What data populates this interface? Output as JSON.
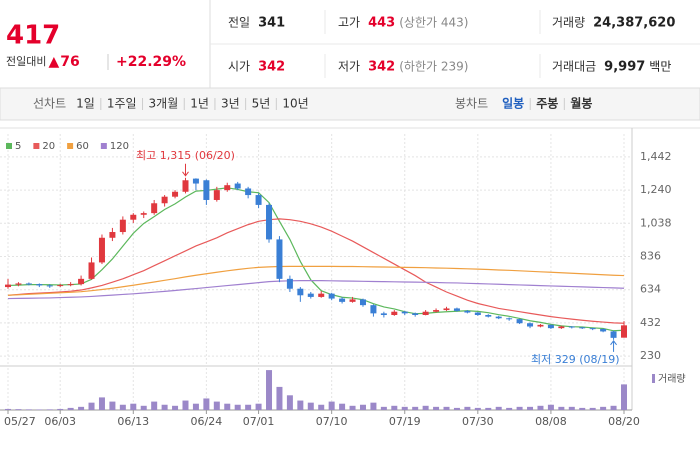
{
  "header": {
    "price": 417,
    "change_label": "전일대비",
    "arrow": "▲",
    "change": 76,
    "change_pct": "+22.29%",
    "stats": [
      {
        "label": "전일",
        "value": 341
      },
      {
        "label": "고가",
        "value": 443,
        "note": "(상한가 443)",
        "color": "#e4002b"
      },
      {
        "label": "거래량",
        "value": "24,387,620"
      },
      {
        "label": "시가",
        "value": 342,
        "color": "#e4002b"
      },
      {
        "label": "저가",
        "value": 342,
        "note": "(하한가 239)",
        "color": "#e4002b"
      },
      {
        "label": "거래대금",
        "value": "9,997",
        "note": "백만"
      }
    ]
  },
  "toolbar": {
    "line_label": "선차트",
    "periods": [
      "1일",
      "1주일",
      "3개월",
      "1년",
      "3년",
      "5년",
      "10년"
    ],
    "candle_label": "봉차트",
    "candle_periods": [
      "일봉",
      "주봉",
      "월봉"
    ],
    "selected": "일봉"
  },
  "chart_data": {
    "type": "candlestick",
    "categories": [
      "05/27",
      null,
      null,
      null,
      null,
      "06/03",
      null,
      null,
      null,
      null,
      null,
      null,
      "06/13",
      null,
      null,
      null,
      null,
      null,
      null,
      "06/24",
      null,
      null,
      null,
      null,
      "07/01",
      null,
      null,
      null,
      null,
      null,
      null,
      "07/10",
      null,
      null,
      null,
      null,
      null,
      null,
      "07/19",
      null,
      null,
      null,
      null,
      null,
      null,
      "07/30",
      null,
      null,
      null,
      null,
      null,
      null,
      "08/08",
      null,
      null,
      null,
      null,
      null,
      null,
      "08/20"
    ],
    "open": [
      650,
      665,
      672,
      668,
      660,
      656,
      662,
      668,
      700,
      800,
      950,
      985,
      1060,
      1090,
      1100,
      1160,
      1200,
      1230,
      1310,
      1300,
      1180,
      1240,
      1280,
      1250,
      1210,
      1150,
      940,
      700,
      640,
      610,
      590,
      610,
      580,
      560,
      575,
      540,
      490,
      480,
      500,
      490,
      480,
      500,
      510,
      520,
      505,
      495,
      480,
      470,
      460,
      455,
      430,
      410,
      420,
      400,
      410,
      405,
      400,
      395,
      380,
      342
    ],
    "high": [
      700,
      680,
      678,
      672,
      668,
      670,
      680,
      720,
      830,
      970,
      1010,
      1080,
      1100,
      1110,
      1180,
      1210,
      1240,
      1315,
      1312,
      1305,
      1260,
      1285,
      1290,
      1260,
      1220,
      1160,
      960,
      720,
      650,
      620,
      625,
      615,
      590,
      590,
      580,
      545,
      500,
      510,
      505,
      495,
      510,
      520,
      530,
      525,
      510,
      498,
      485,
      475,
      465,
      458,
      435,
      425,
      422,
      415,
      412,
      408,
      402,
      398,
      385,
      443
    ],
    "low": [
      640,
      655,
      660,
      650,
      645,
      650,
      655,
      660,
      695,
      790,
      930,
      970,
      1040,
      1070,
      1090,
      1140,
      1190,
      1220,
      1240,
      1150,
      1170,
      1230,
      1240,
      1190,
      1130,
      920,
      680,
      620,
      560,
      580,
      585,
      570,
      550,
      555,
      530,
      470,
      465,
      475,
      480,
      470,
      478,
      495,
      505,
      500,
      490,
      475,
      465,
      455,
      445,
      425,
      400,
      405,
      395,
      395,
      398,
      395,
      388,
      375,
      329,
      342
    ],
    "close": [
      665,
      672,
      668,
      660,
      656,
      662,
      668,
      700,
      800,
      950,
      985,
      1060,
      1090,
      1100,
      1160,
      1200,
      1230,
      1300,
      1280,
      1180,
      1240,
      1270,
      1250,
      1210,
      1150,
      940,
      700,
      640,
      600,
      590,
      610,
      580,
      560,
      575,
      540,
      490,
      480,
      500,
      490,
      480,
      500,
      510,
      520,
      505,
      495,
      480,
      470,
      460,
      455,
      430,
      410,
      420,
      400,
      410,
      405,
      400,
      395,
      380,
      341,
      417
    ],
    "up_color": "#e0383e",
    "down_color": "#3a7fd5",
    "ma": [
      {
        "name": "5",
        "color": "#5cb85c",
        "values": [
          660,
          662,
          665,
          665,
          664,
          663,
          665,
          669,
          697,
          756,
          821,
          899,
          977,
          1037,
          1079,
          1122,
          1156,
          1198,
          1234,
          1238,
          1246,
          1254,
          1244,
          1230,
          1224,
          1164,
          1050,
          940,
          806,
          694,
          628,
          604,
          588,
          583,
          573,
          549,
          529,
          517,
          500,
          488,
          490,
          496,
          500,
          503,
          506,
          502,
          494,
          482,
          472,
          459,
          445,
          435,
          423,
          414,
          409,
          407,
          402,
          398,
          384,
          387
        ]
      },
      {
        "name": "20",
        "color": "#e85a5a",
        "values": [
          600,
          605,
          610,
          613,
          616,
          620,
          625,
          632,
          645,
          660,
          680,
          700,
          725,
          750,
          780,
          810,
          840,
          870,
          900,
          925,
          950,
          980,
          1005,
          1030,
          1050,
          1060,
          1065,
          1060,
          1050,
          1035,
          1015,
          990,
          960,
          930,
          895,
          860,
          825,
          790,
          755,
          720,
          680,
          650,
          620,
          595,
          570,
          550,
          535,
          520,
          510,
          500,
          490,
          480,
          470,
          462,
          455,
          448,
          442,
          437,
          432,
          430
        ]
      },
      {
        "name": "60",
        "color": "#f0a040",
        "values": [
          600,
          603,
          606,
          609,
          612,
          615,
          618,
          622,
          628,
          635,
          643,
          652,
          661,
          671,
          681,
          691,
          701,
          712,
          722,
          731,
          740,
          749,
          757,
          764,
          770,
          773,
          775,
          776,
          776,
          776,
          776,
          776,
          775,
          775,
          774,
          773,
          772,
          771,
          770,
          769,
          768,
          766,
          765,
          763,
          761,
          759,
          757,
          754,
          752,
          749,
          746,
          743,
          740,
          737,
          734,
          731,
          728,
          725,
          722,
          720
        ]
      },
      {
        "name": "120",
        "color": "#a080d0",
        "values": [
          580,
          581,
          582,
          583,
          584,
          586,
          588,
          590,
          593,
          597,
          601,
          605,
          609,
          614,
          619,
          624,
          629,
          635,
          641,
          647,
          653,
          659,
          665,
          671,
          677,
          683,
          686,
          688,
          689,
          689,
          689,
          688,
          687,
          686,
          685,
          684,
          683,
          682,
          681,
          680,
          679,
          678,
          676,
          675,
          673,
          671,
          669,
          667,
          665,
          663,
          661,
          659,
          657,
          655,
          653,
          651,
          649,
          647,
          645,
          643
        ]
      }
    ],
    "volume": {
      "name": "거래량",
      "color": "#9b88c8",
      "ylim": [
        0,
        40000000
      ],
      "values": [
        1000000,
        800000,
        600000,
        500000,
        600000,
        1000000,
        2000000,
        3000000,
        7000000,
        12000000,
        8000000,
        5000000,
        6000000,
        4000000,
        8000000,
        5000000,
        4000000,
        9000000,
        6000000,
        11000000,
        8000000,
        6000000,
        5000000,
        5000000,
        6000000,
        38000000,
        22000000,
        14000000,
        9000000,
        7000000,
        5000000,
        8000000,
        6000000,
        4000000,
        5000000,
        7000000,
        3000000,
        4000000,
        3000000,
        3000000,
        4000000,
        3000000,
        3000000,
        2000000,
        3000000,
        2000000,
        2000000,
        3000000,
        2000000,
        3000000,
        3000000,
        4000000,
        5000000,
        3000000,
        3000000,
        2000000,
        2000000,
        3000000,
        4000000,
        24387620
      ]
    },
    "ylim": [
      194,
      1545
    ],
    "yticks": [
      {
        "value": 1442,
        "label": "1,442"
      },
      {
        "value": 1240,
        "label": "1,240"
      },
      {
        "value": 1038,
        "label": "1,038"
      },
      836,
      634,
      432,
      230
    ],
    "grid": true,
    "annotations": {
      "high": "최고 1,315 (06/20)",
      "low": "최저 329 (08/19)"
    }
  }
}
